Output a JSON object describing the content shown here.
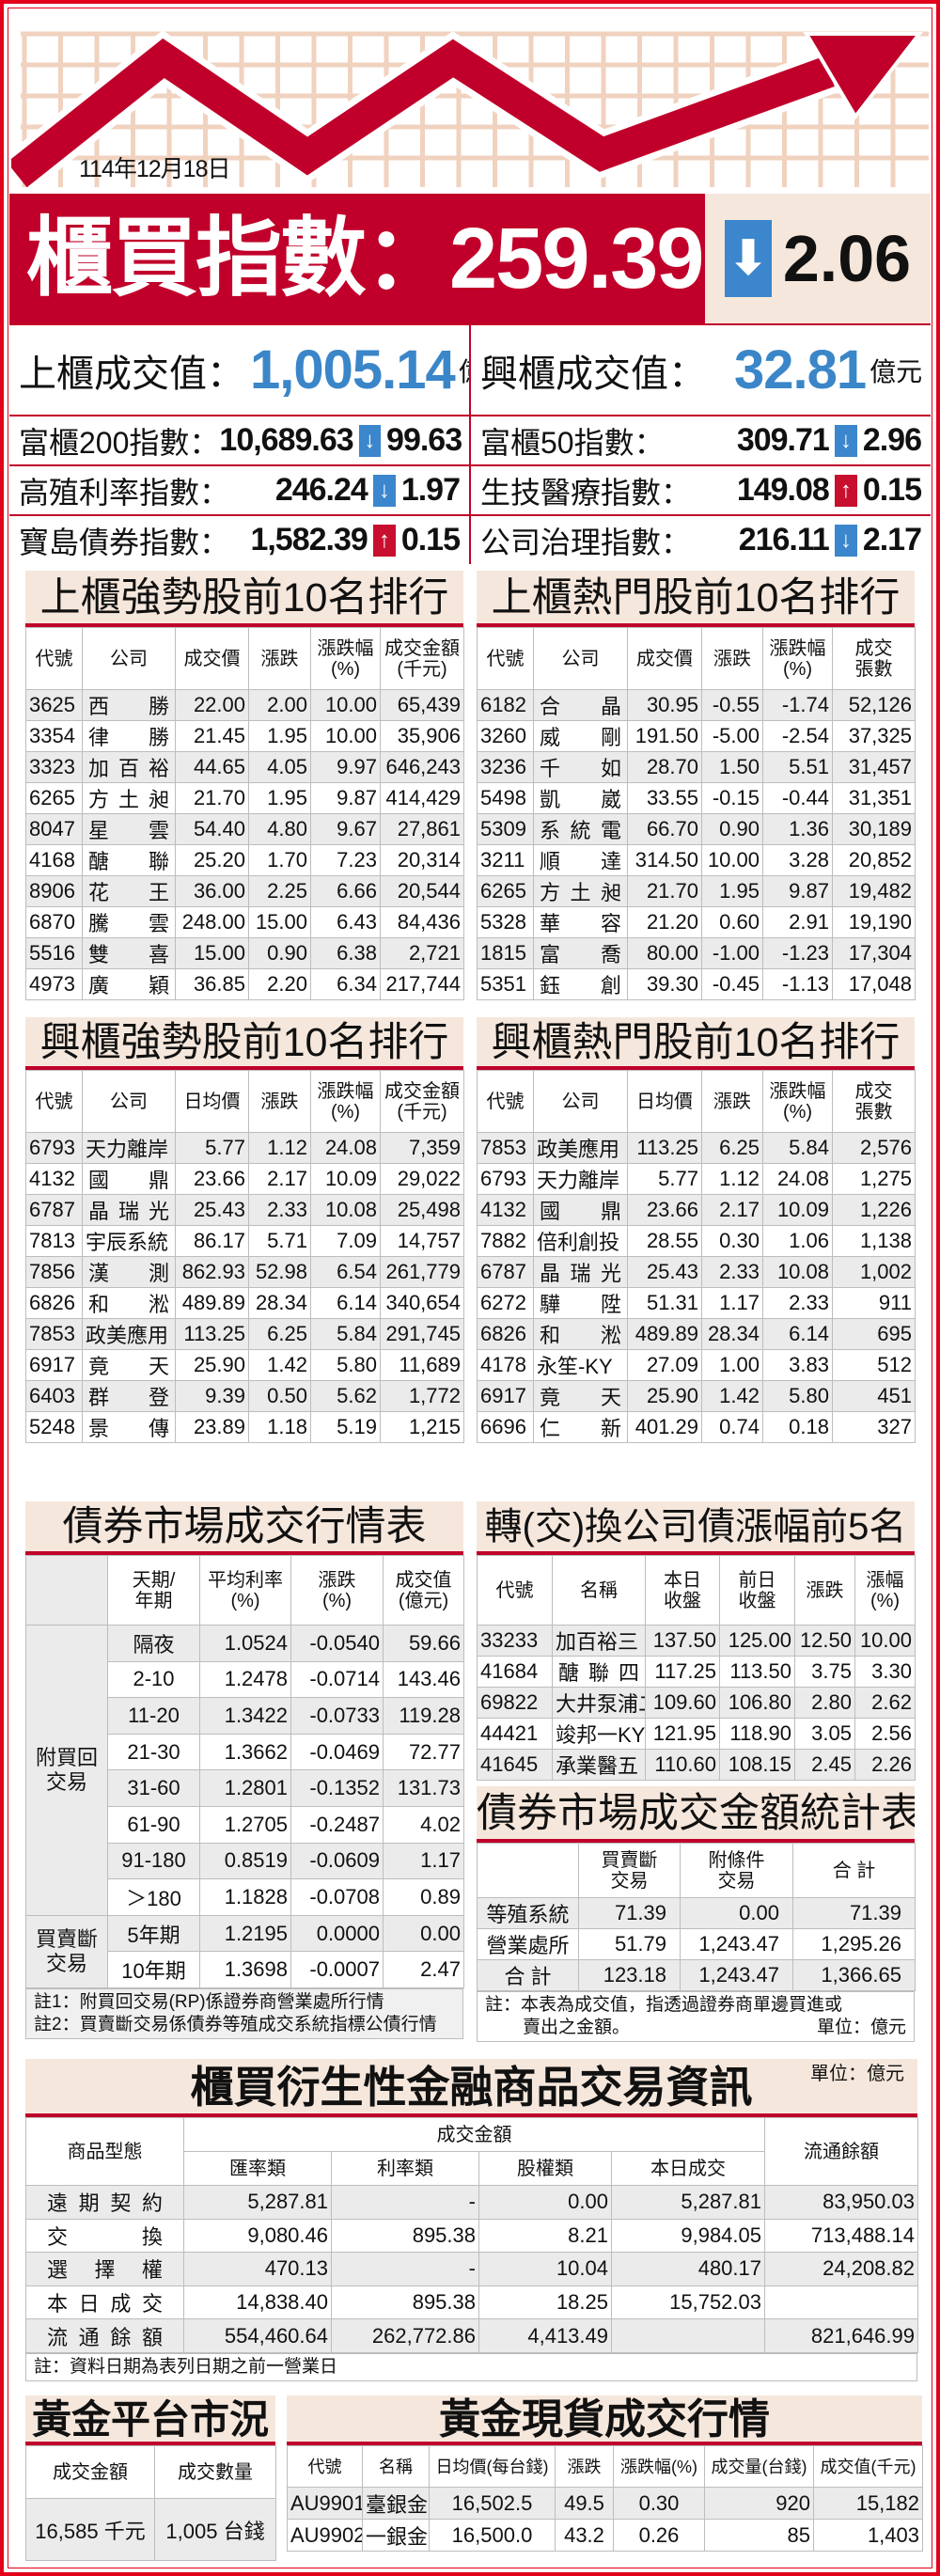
{
  "header": {
    "date": "114年12月18日",
    "index_label": "櫃買指數：",
    "index_value": "259.39",
    "index_change": "2.06",
    "index_dir": "down"
  },
  "stats": [
    [
      {
        "label": "上櫃成交值：",
        "value": "1,005.14",
        "unit": "億元"
      },
      {
        "label": "興櫃成交值：",
        "value": "32.81",
        "unit": "億元"
      }
    ],
    [
      {
        "label": "富櫃200指數：",
        "value": "10,689.63",
        "dir": "down",
        "change": "99.63"
      },
      {
        "label": "富櫃50指數：",
        "value": "309.71",
        "dir": "down",
        "change": "2.96"
      }
    ],
    [
      {
        "label": "高殖利率指數：",
        "value": "246.24",
        "dir": "down",
        "change": "1.97"
      },
      {
        "label": "生技醫療指數：",
        "value": "149.08",
        "dir": "up",
        "change": "0.15"
      }
    ],
    [
      {
        "label": "寶島債券指數：",
        "value": "1,582.39",
        "dir": "up",
        "change": "0.15"
      },
      {
        "label": "公司治理指數：",
        "value": "216.11",
        "dir": "down",
        "change": "2.17"
      }
    ]
  ],
  "otc_strong": {
    "title": "上櫃強勢股前10名排行",
    "headers": [
      "代號",
      "公司",
      "成交價",
      "漲跌",
      "漲跌幅\n(%)",
      "成交金額\n(千元)"
    ],
    "rows": [
      [
        "3625",
        "西勝",
        "22.00",
        "2.00",
        "10.00",
        "65,439"
      ],
      [
        "3354",
        "律勝",
        "21.45",
        "1.95",
        "10.00",
        "35,906"
      ],
      [
        "3323",
        "加百裕",
        "44.65",
        "4.05",
        "9.97",
        "646,243"
      ],
      [
        "6265",
        "方土昶",
        "21.70",
        "1.95",
        "9.87",
        "414,429"
      ],
      [
        "8047",
        "星雲",
        "54.40",
        "4.80",
        "9.67",
        "27,861"
      ],
      [
        "4168",
        "醣聯",
        "25.20",
        "1.70",
        "7.23",
        "20,314"
      ],
      [
        "8906",
        "花王",
        "36.00",
        "2.25",
        "6.66",
        "20,544"
      ],
      [
        "6870",
        "騰雲",
        "248.00",
        "15.00",
        "6.43",
        "84,436"
      ],
      [
        "5516",
        "雙喜",
        "15.00",
        "0.90",
        "6.38",
        "2,721"
      ],
      [
        "4973",
        "廣穎",
        "36.85",
        "2.20",
        "6.34",
        "217,744"
      ]
    ]
  },
  "otc_hot": {
    "title": "上櫃熱門股前10名排行",
    "headers": [
      "代號",
      "公司",
      "成交價",
      "漲跌",
      "漲跌幅\n(%)",
      "成交\n張數"
    ],
    "rows": [
      [
        "6182",
        "合晶",
        "30.95",
        "-0.55",
        "-1.74",
        "52,126"
      ],
      [
        "3260",
        "威剛",
        "191.50",
        "-5.00",
        "-2.54",
        "37,325"
      ],
      [
        "3236",
        "千如",
        "28.70",
        "1.50",
        "5.51",
        "31,457"
      ],
      [
        "5498",
        "凱崴",
        "33.55",
        "-0.15",
        "-0.44",
        "31,351"
      ],
      [
        "5309",
        "系統電",
        "66.70",
        "0.90",
        "1.36",
        "30,189"
      ],
      [
        "3211",
        "順達",
        "314.50",
        "10.00",
        "3.28",
        "20,852"
      ],
      [
        "6265",
        "方土昶",
        "21.70",
        "1.95",
        "9.87",
        "19,482"
      ],
      [
        "5328",
        "華容",
        "21.20",
        "0.60",
        "2.91",
        "19,190"
      ],
      [
        "1815",
        "富喬",
        "80.00",
        "-1.00",
        "-1.23",
        "17,304"
      ],
      [
        "5351",
        "鈺創",
        "39.30",
        "-0.45",
        "-1.13",
        "17,048"
      ]
    ]
  },
  "emg_strong": {
    "title": "興櫃強勢股前10名排行",
    "headers": [
      "代號",
      "公司",
      "日均價",
      "漲跌",
      "漲跌幅\n(%)",
      "成交金額\n(千元)"
    ],
    "rows": [
      [
        "6793",
        "天力離岸",
        "5.77",
        "1.12",
        "24.08",
        "7,359"
      ],
      [
        "4132",
        "國鼎",
        "23.66",
        "2.17",
        "10.09",
        "29,022"
      ],
      [
        "6787",
        "晶瑞光",
        "25.43",
        "2.33",
        "10.08",
        "25,498"
      ],
      [
        "7813",
        "宇辰系統",
        "86.17",
        "5.71",
        "7.09",
        "14,757"
      ],
      [
        "7856",
        "漢測",
        "862.93",
        "52.98",
        "6.54",
        "261,779"
      ],
      [
        "6826",
        "和淞",
        "489.89",
        "28.34",
        "6.14",
        "340,654"
      ],
      [
        "7853",
        "政美應用",
        "113.25",
        "6.25",
        "5.84",
        "291,745"
      ],
      [
        "6917",
        "竟天",
        "25.90",
        "1.42",
        "5.80",
        "11,689"
      ],
      [
        "6403",
        "群登",
        "9.39",
        "0.50",
        "5.62",
        "1,772"
      ],
      [
        "5248",
        "景傳",
        "23.89",
        "1.18",
        "5.19",
        "1,215"
      ]
    ]
  },
  "emg_hot": {
    "title": "興櫃熱門股前10名排行",
    "headers": [
      "代號",
      "公司",
      "日均價",
      "漲跌",
      "漲跌幅\n(%)",
      "成交\n張數"
    ],
    "rows": [
      [
        "7853",
        "政美應用",
        "113.25",
        "6.25",
        "5.84",
        "2,576"
      ],
      [
        "6793",
        "天力離岸",
        "5.77",
        "1.12",
        "24.08",
        "1,275"
      ],
      [
        "4132",
        "國鼎",
        "23.66",
        "2.17",
        "10.09",
        "1,226"
      ],
      [
        "7882",
        "倍利創投",
        "28.55",
        "0.30",
        "1.06",
        "1,138"
      ],
      [
        "6787",
        "晶瑞光",
        "25.43",
        "2.33",
        "10.08",
        "1,002"
      ],
      [
        "6272",
        "驊陞",
        "51.31",
        "1.17",
        "2.33",
        "911"
      ],
      [
        "6826",
        "和淞",
        "489.89",
        "28.34",
        "6.14",
        "695"
      ],
      [
        "4178",
        "永笙-KY",
        "27.09",
        "1.00",
        "3.83",
        "512"
      ],
      [
        "6917",
        "竟天",
        "25.90",
        "1.42",
        "5.80",
        "451"
      ],
      [
        "6696",
        "仁新",
        "401.29",
        "0.74",
        "0.18",
        "327"
      ]
    ]
  },
  "bond_market": {
    "title": "債券市場成交行情表",
    "headers": [
      "",
      "天期/\n年期",
      "平均利率\n(%)",
      "漲跌\n(%)",
      "成交值\n(億元)"
    ],
    "groups": [
      {
        "label": "附買回\n交易",
        "rows": [
          [
            "隔夜",
            "1.0524",
            "-0.0540",
            "59.66"
          ],
          [
            "2-10",
            "1.2478",
            "-0.0714",
            "143.46"
          ],
          [
            "11-20",
            "1.3422",
            "-0.0733",
            "119.28"
          ],
          [
            "21-30",
            "1.3662",
            "-0.0469",
            "72.77"
          ],
          [
            "31-60",
            "1.2801",
            "-0.1352",
            "131.73"
          ],
          [
            "61-90",
            "1.2705",
            "-0.2487",
            "4.02"
          ],
          [
            "91-180",
            "0.8519",
            "-0.0609",
            "1.17"
          ],
          [
            "＞180",
            "1.1828",
            "-0.0708",
            "0.89"
          ]
        ]
      },
      {
        "label": "買賣斷\n交易",
        "rows": [
          [
            "5年期",
            "1.2195",
            "0.0000",
            "0.00"
          ],
          [
            "10年期",
            "1.3698",
            "-0.0007",
            "2.47"
          ]
        ]
      }
    ],
    "notes": [
      "註1：附買回交易(RP)係證券商營業處所行情",
      "註2：買賣斷交易係債券等殖成交系統指標公債行情"
    ]
  },
  "convertible": {
    "title": "轉(交)換公司債漲幅前5名",
    "headers": [
      "代號",
      "名稱",
      "本日\n收盤",
      "前日\n收盤",
      "漲跌",
      "漲幅\n(%)"
    ],
    "rows": [
      [
        "33233",
        "加百裕三",
        "137.50",
        "125.00",
        "12.50",
        "10.00"
      ],
      [
        "41684",
        "醣聯四",
        "117.25",
        "113.50",
        "3.75",
        "3.30"
      ],
      [
        "69822",
        "大井泵浦二",
        "109.60",
        "106.80",
        "2.80",
        "2.62"
      ],
      [
        "44421",
        "竣邦一KY",
        "121.95",
        "118.90",
        "3.05",
        "2.56"
      ],
      [
        "41645",
        "承業醫五",
        "110.60",
        "108.15",
        "2.45",
        "2.26"
      ]
    ]
  },
  "bond_amount": {
    "title": "債券市場成交金額統計表",
    "headers": [
      "",
      "買賣斷\n交易",
      "附條件\n交易",
      "合 計"
    ],
    "rows": [
      [
        "等殖系統",
        "71.39",
        "0.00",
        "71.39"
      ],
      [
        "營業處所",
        "51.79",
        "1,243.47",
        "1,295.26"
      ],
      [
        "合 計",
        "123.18",
        "1,243.47",
        "1,366.65"
      ]
    ],
    "note": "註：本表為成交值，指透過證券商單邊買進或",
    "note2": "賣出之金額。",
    "unit": "單位：億元"
  },
  "derivatives": {
    "title": "櫃買衍生性金融商品交易資訊",
    "unit": "單位：億元",
    "h_type": "商品型態",
    "h_group": "成交金額",
    "h_sub": [
      "匯率類",
      "利率類",
      "股權類",
      "本日成交"
    ],
    "h_out": "流通餘額",
    "rows": [
      [
        "遠期契約",
        "5,287.81",
        "-",
        "0.00",
        "5,287.81",
        "83,950.03"
      ],
      [
        "交換",
        "9,080.46",
        "895.38",
        "8.21",
        "9,984.05",
        "713,488.14"
      ],
      [
        "選擇權",
        "470.13",
        "-",
        "10.04",
        "480.17",
        "24,208.82"
      ],
      [
        "本日成交",
        "14,838.40",
        "895.38",
        "18.25",
        "15,752.03",
        ""
      ],
      [
        "流通餘額",
        "554,460.64",
        "262,772.86",
        "4,413.49",
        "",
        "821,646.99"
      ]
    ],
    "note": "註：資料日期為表列日期之前一營業日"
  },
  "gold_platform": {
    "title": "黃金平台市況",
    "headers": [
      "成交金額",
      "成交數量"
    ],
    "row": [
      "16,585 千元",
      "1,005 台錢"
    ]
  },
  "gold_spot": {
    "title": "黃金現貨成交行情",
    "headers": [
      "代號",
      "名稱",
      "日均價(每台錢)",
      "漲跌",
      "漲跌幅(%)",
      "成交量(台錢)",
      "成交值(千元)"
    ],
    "rows": [
      [
        "AU9901",
        "臺銀金",
        "16,502.5",
        "49.5",
        "0.30",
        "920",
        "15,182"
      ],
      [
        "AU9902",
        "一銀金",
        "16,500.0",
        "43.2",
        "0.26",
        "85",
        "1,403"
      ]
    ]
  },
  "colors": {
    "accent_red": "#c0002a",
    "title_bg": "#f6e7dc",
    "value_blue": "#3a86c8",
    "down_arrow": "#3b86cc",
    "up_arrow": "#c8102e"
  },
  "icons": {
    "down": "arrow-down-icon",
    "up": "arrow-up-icon"
  }
}
